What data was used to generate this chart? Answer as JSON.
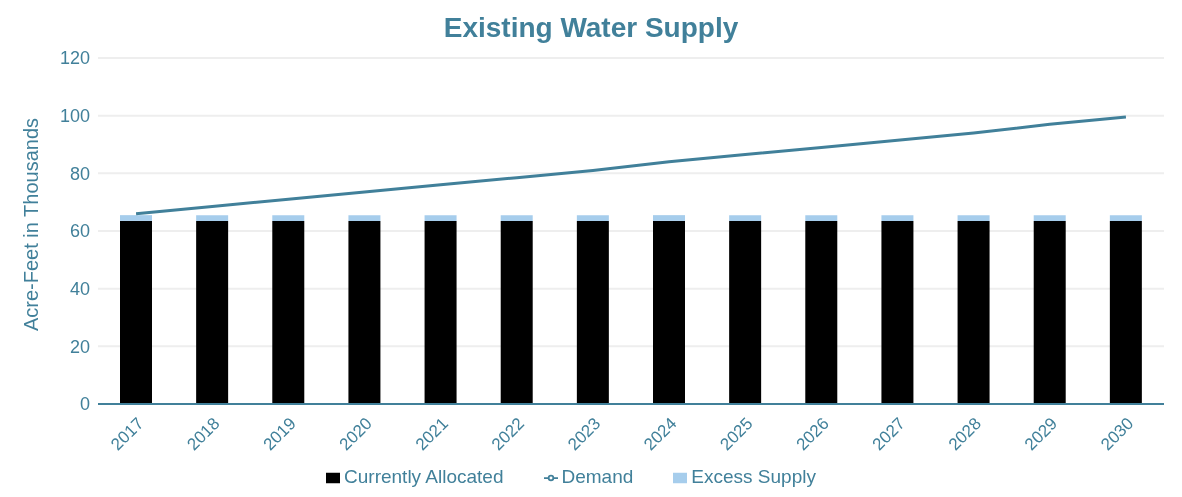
{
  "chart_data": {
    "type": "bar",
    "title": "Existing Water Supply",
    "ylabel": "Acre-Feet in Thousands",
    "categories": [
      "2017",
      "2018",
      "2019",
      "2020",
      "2021",
      "2022",
      "2023",
      "2024",
      "2025",
      "2026",
      "2027",
      "2028",
      "2029",
      "2030"
    ],
    "stacked": true,
    "series": [
      {
        "name": "Currently Allocated",
        "color": "#000000",
        "values": [
          63.5,
          63.5,
          63.5,
          63.5,
          63.5,
          63.5,
          63.5,
          63.5,
          63.5,
          63.5,
          63.5,
          63.5,
          63.5,
          63.5
        ]
      },
      {
        "name": "Excess Supply",
        "color": "#a6cdec",
        "values": [
          2,
          2,
          2,
          2,
          2,
          2,
          2,
          2,
          2,
          2,
          2,
          2,
          2,
          2
        ]
      },
      {
        "name": "Demand",
        "type": "line",
        "color": "#41809a",
        "values": [
          66,
          68.5,
          71,
          73.5,
          76,
          78.5,
          81,
          84,
          86.5,
          89,
          91.5,
          94,
          97,
          99.5
        ]
      }
    ],
    "ylim": [
      0,
      120
    ],
    "yticks": [
      0,
      20,
      40,
      60,
      80,
      100,
      120
    ],
    "grid": "y",
    "legend": "bottom",
    "marker": "none"
  }
}
